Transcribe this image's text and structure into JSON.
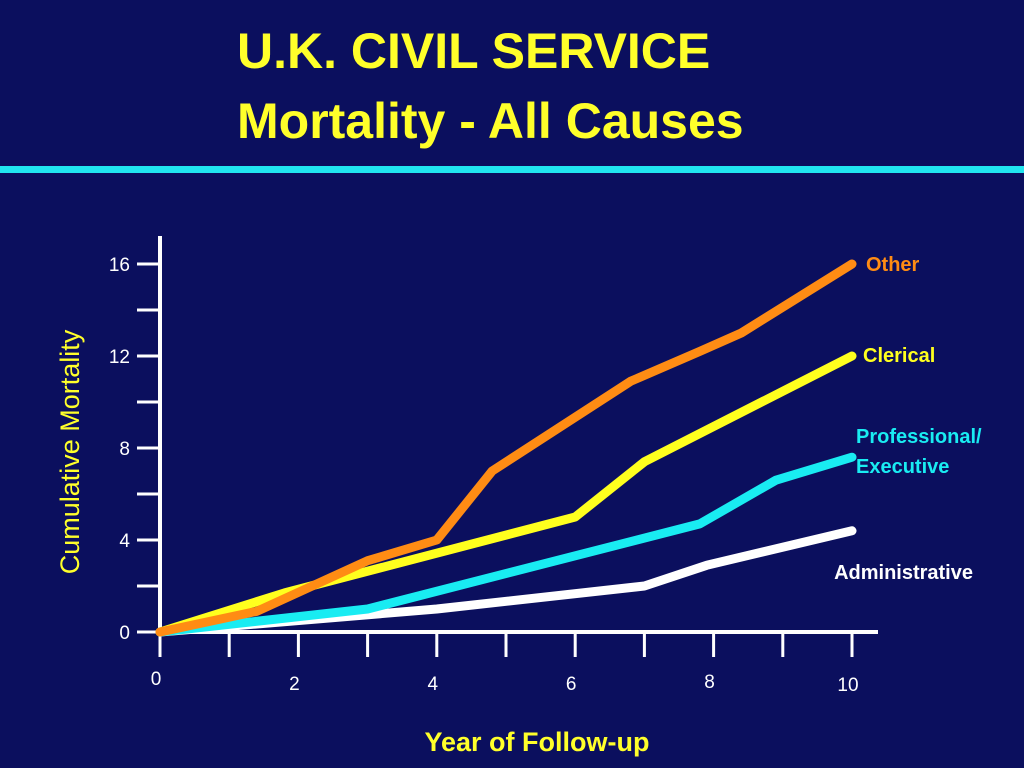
{
  "title": {
    "line1": "U.K. CIVIL SERVICE",
    "line2": "Mortality - All Causes"
  },
  "colors": {
    "background": "#0b0f5e",
    "title": "#ffff2a",
    "divider": "#21e5f0",
    "axis": "#ffffff"
  },
  "chart_data": {
    "type": "line",
    "xlabel": "Year of Follow-up",
    "ylabel": "Cumulative Mortality",
    "xlim": [
      0,
      10
    ],
    "ylim": [
      0,
      16
    ],
    "x_ticks": [
      0,
      2,
      4,
      6,
      8,
      10
    ],
    "y_ticks": [
      0,
      4,
      8,
      12,
      16
    ],
    "grid": false,
    "legend": "inline labels at line ends",
    "series": [
      {
        "name": "Other",
        "color": "#ff8c14",
        "points": [
          [
            0,
            0
          ],
          [
            1.4,
            0.9
          ],
          [
            3,
            3.1
          ],
          [
            4,
            4.0
          ],
          [
            4.8,
            7.0
          ],
          [
            6.8,
            10.9
          ],
          [
            7.8,
            12.2
          ],
          [
            8.4,
            13.0
          ],
          [
            10,
            16.0
          ]
        ]
      },
      {
        "name": "Clerical",
        "color": "#ffff1e",
        "points": [
          [
            0,
            0
          ],
          [
            1.8,
            1.7
          ],
          [
            6,
            5.0
          ],
          [
            7,
            7.4
          ],
          [
            10,
            12.0
          ]
        ]
      },
      {
        "name": "Professional/ Executive",
        "color": "#19ecf2",
        "points": [
          [
            0,
            0
          ],
          [
            3,
            1.0
          ],
          [
            7.8,
            4.7
          ],
          [
            8.9,
            6.6
          ],
          [
            10,
            7.6
          ]
        ]
      },
      {
        "name": "Administrative",
        "color": "#ffffff",
        "points": [
          [
            0,
            0
          ],
          [
            4,
            1.0
          ],
          [
            7,
            2.0
          ],
          [
            7.9,
            2.9
          ],
          [
            10,
            4.4
          ]
        ]
      }
    ]
  }
}
